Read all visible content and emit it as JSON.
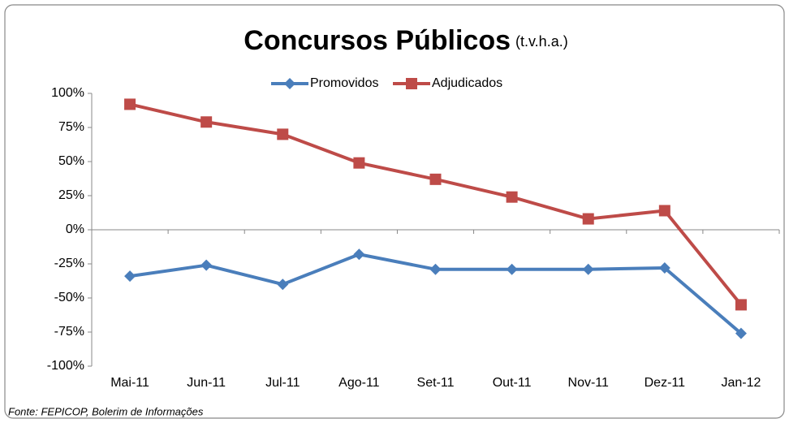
{
  "chart_data": {
    "type": "line",
    "title": "Concursos Públicos",
    "subtitle": "(t.v.h.a.)",
    "note": "Fonte: FEPICOP, Bolerim de Informações",
    "categories": [
      "Mai-11",
      "Jun-11",
      "Jul-11",
      "Ago-11",
      "Set-11",
      "Out-11",
      "Nov-11",
      "Dez-11",
      "Jan-12"
    ],
    "series": [
      {
        "name": "Promovidos",
        "color": "#4a7ebb",
        "values": [
          -34,
          -26,
          -40,
          -18,
          -29,
          -29,
          -29,
          -28,
          -76
        ]
      },
      {
        "name": "Adjudicados",
        "color": "#be4b48",
        "values": [
          92,
          79,
          70,
          49,
          37,
          24,
          8,
          14,
          -55
        ]
      }
    ],
    "ylim": [
      -100,
      100
    ],
    "yticks": [
      {
        "value": -100,
        "label": "-100%"
      },
      {
        "value": -75,
        "label": "-75%"
      },
      {
        "value": -50,
        "label": "-50%"
      },
      {
        "value": -25,
        "label": "-25%"
      },
      {
        "value": 0,
        "label": "0%"
      },
      {
        "value": 25,
        "label": "25%"
      },
      {
        "value": 50,
        "label": "50%"
      },
      {
        "value": 75,
        "label": "75%"
      },
      {
        "value": 100,
        "label": "100%"
      }
    ],
    "grid": false,
    "legend": "top"
  }
}
